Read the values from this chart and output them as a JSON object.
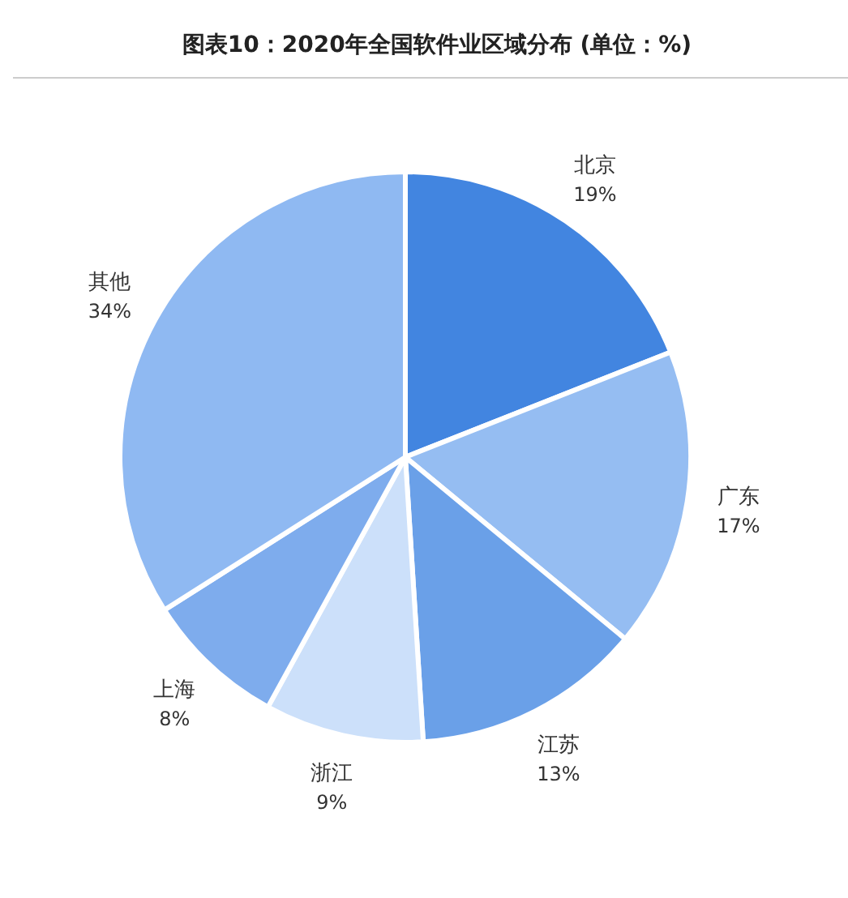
{
  "chart_data": {
    "type": "pie",
    "title": "图表10：2020年全国软件业区域分布 (单位：%)",
    "categories": [
      "北京",
      "广东",
      "江苏",
      "浙江",
      "上海",
      "其他"
    ],
    "values": [
      19,
      17,
      13,
      9,
      8,
      34
    ],
    "colors": [
      "#4285e0",
      "#95bdf2",
      "#6aa0e8",
      "#cce0fa",
      "#7eaced",
      "#8fb9f2"
    ],
    "value_labels": [
      "19%",
      "17%",
      "13%",
      "9%",
      "8%",
      "34%"
    ]
  }
}
